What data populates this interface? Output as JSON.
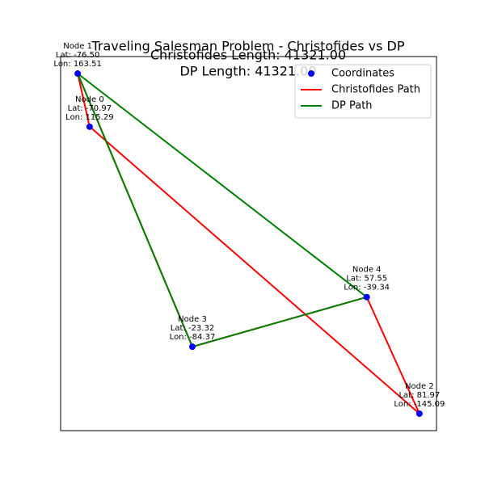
{
  "chart_data": {
    "type": "scatter",
    "title": [
      "Traveling Salesman Problem - Christofides vs DP",
      "Christofides Length: 41321.00",
      "DP Length: 41321.00"
    ],
    "xlim": [
      -84.42,
      89.89
    ],
    "ylim": [
      -160.52,
      178.94
    ],
    "legend": "upper right",
    "series": [
      {
        "name": "Coordinates",
        "color": "#0000ff",
        "x": [
          -70.97,
          -76.5,
          81.97,
          -23.32,
          57.55
        ],
        "values": [
          115.29,
          163.51,
          -145.09,
          -84.37,
          -39.34
        ],
        "point_labels": [
          [
            "Node 0",
            "Lat: -70.97",
            "Lon: 115.29"
          ],
          [
            "Node 1",
            "Lat: -76.50",
            "Lon: 163.51"
          ],
          [
            "Node 2",
            "Lat: 81.97",
            "Lon: -145.09"
          ],
          [
            "Node 3",
            "Lat: -23.32",
            "Lon: -84.37"
          ],
          [
            "Node 4",
            "Lat: 57.55",
            "Lon: -39.34"
          ]
        ]
      },
      {
        "name": "Christofides Path",
        "color": "#ff0000",
        "path": [
          0,
          2,
          4,
          3,
          1,
          0
        ]
      },
      {
        "name": "DP Path",
        "color": "#008000",
        "path": [
          1,
          4,
          3,
          1
        ]
      }
    ]
  }
}
